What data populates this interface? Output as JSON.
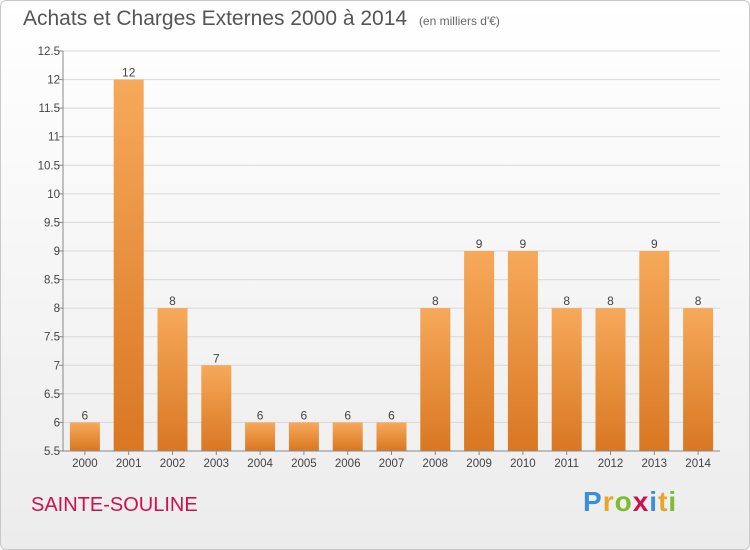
{
  "title": "Achats et Charges Externes 2000 à 2014",
  "subtitle": "(en milliers d'€)",
  "commune": "SAINTE-SOULINE",
  "brand": {
    "text": "Proxiti",
    "letter_colors": [
      "#3b8ed8",
      "#e8a52b",
      "#7bbd2e",
      "#d0104e",
      "#3b8ed8",
      "#e8a52b",
      "#7bbd2e"
    ]
  },
  "colors": {
    "bar_top": "#f6a95a",
    "bar_bottom": "#d97722",
    "grid": "#d8d8d8",
    "text": "#444444"
  },
  "chart_data": {
    "type": "bar",
    "categories": [
      "2000",
      "2001",
      "2002",
      "2003",
      "2004",
      "2005",
      "2006",
      "2007",
      "2008",
      "2009",
      "2010",
      "2011",
      "2012",
      "2013",
      "2014"
    ],
    "values": [
      6,
      12,
      8,
      7,
      6,
      6,
      6,
      6,
      8,
      9,
      9,
      8,
      8,
      9,
      8
    ],
    "value_labels": [
      "6",
      "12",
      "8",
      "7",
      "6",
      "6",
      "6",
      "6",
      "8",
      "9",
      "9",
      "8",
      "8",
      "9",
      "8"
    ],
    "ylim": [
      5.5,
      12.5
    ],
    "yticks": [
      "5.5",
      "6",
      "6.5",
      "7",
      "7.5",
      "8",
      "8.5",
      "9",
      "9.5",
      "10",
      "10.5",
      "11",
      "11.5",
      "12",
      "12.5"
    ],
    "grid": true
  }
}
